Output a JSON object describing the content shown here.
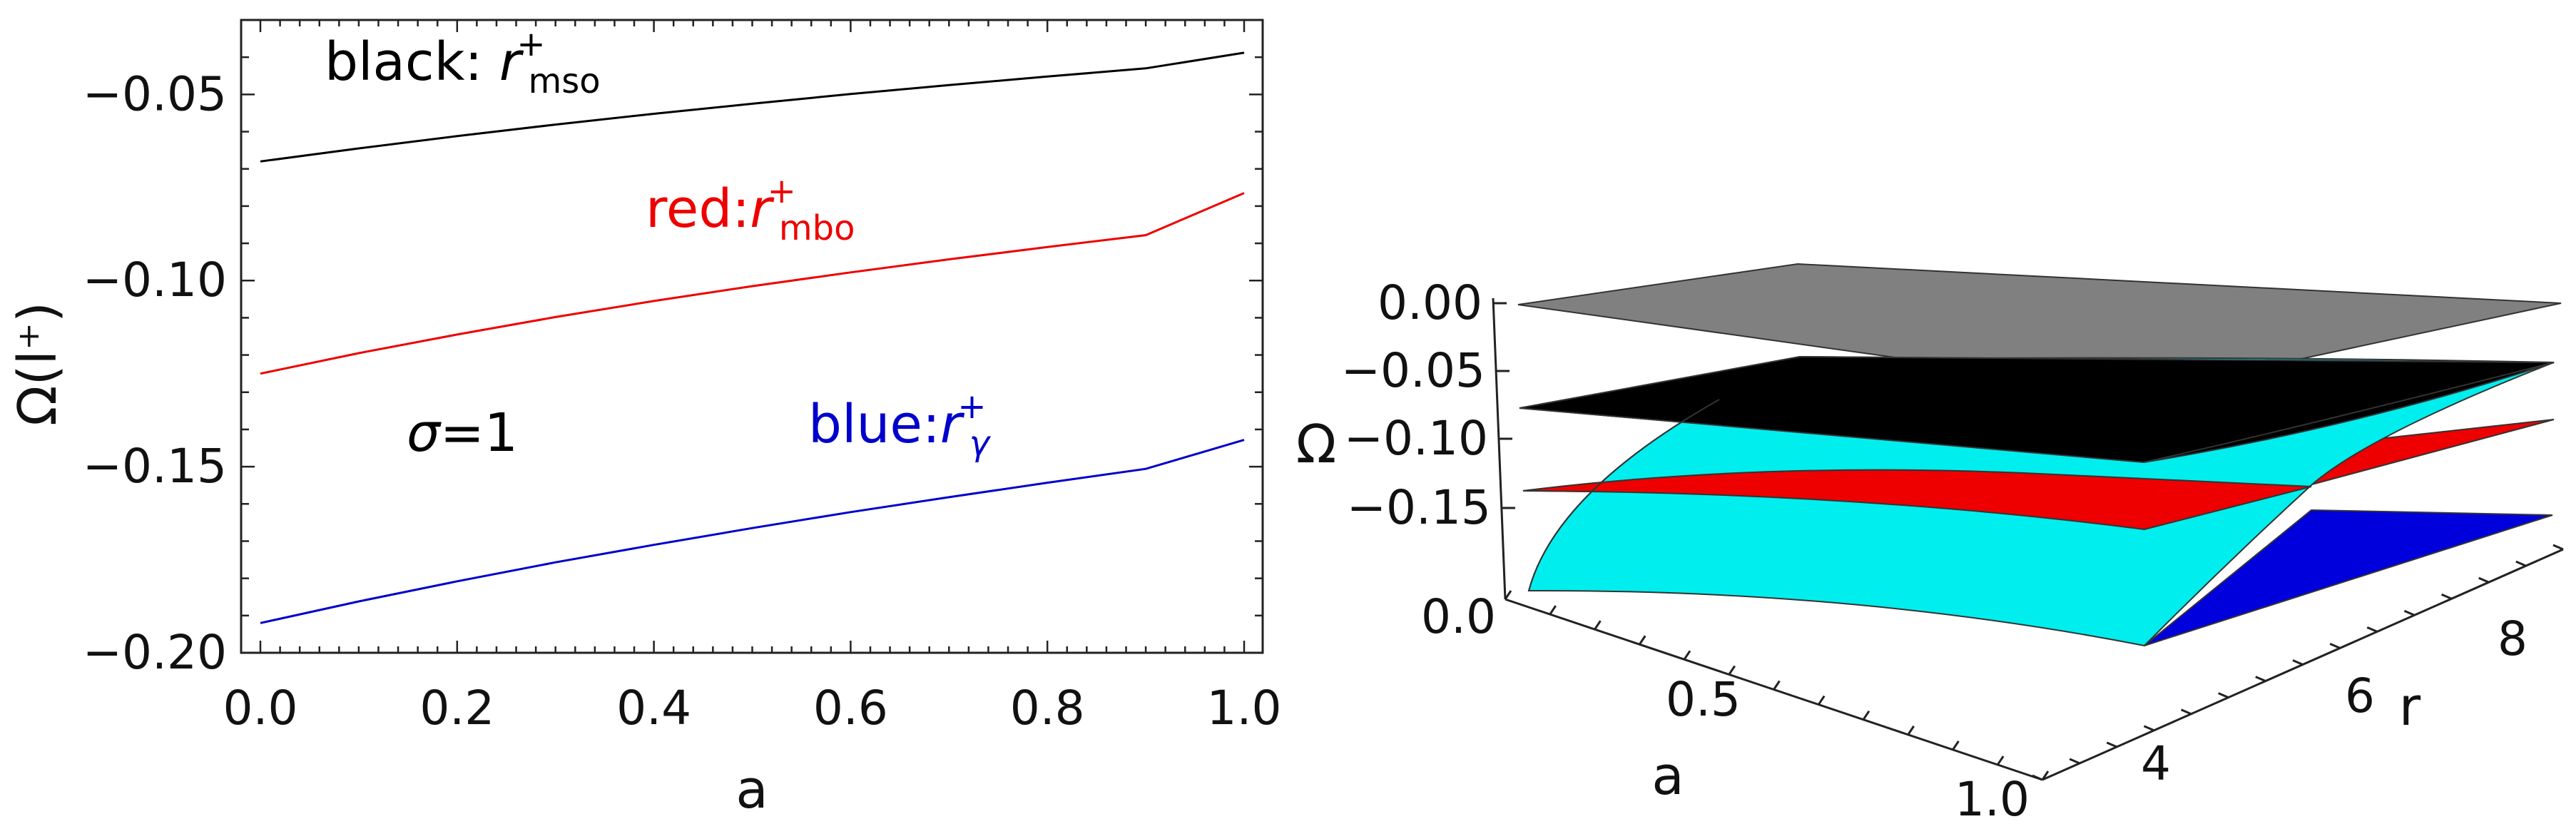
{
  "chart_data": [
    {
      "type": "line",
      "xlabel": "a",
      "ylabel": "Ω(l⁺)",
      "xlim": [
        0.0,
        1.0
      ],
      "ylim": [
        -0.2,
        -0.03
      ],
      "x_ticks": [
        "0.0",
        "0.2",
        "0.4",
        "0.6",
        "0.8",
        "1.0"
      ],
      "y_ticks": [
        "−0.05",
        "−0.10",
        "−0.15",
        "−0.20"
      ],
      "grid": false,
      "x": [
        0.0,
        0.1,
        0.2,
        0.3,
        0.4,
        0.5,
        0.6,
        0.7,
        0.8,
        0.9,
        1.0
      ],
      "series": [
        {
          "color": "#000000",
          "values": [
            -0.068,
            -0.0645,
            -0.0612,
            -0.0581,
            -0.0552,
            -0.0525,
            -0.0499,
            -0.0475,
            -0.0452,
            -0.043,
            -0.0388
          ]
        },
        {
          "color": "#ee0000",
          "values": [
            -0.125,
            -0.1195,
            -0.1145,
            -0.1098,
            -0.1055,
            -0.1015,
            -0.0978,
            -0.0943,
            -0.091,
            -0.0878,
            -0.0765
          ]
        },
        {
          "color": "#0000cc",
          "values": [
            -0.192,
            -0.1862,
            -0.1808,
            -0.1757,
            -0.171,
            -0.1665,
            -0.1622,
            -0.1582,
            -0.1543,
            -0.1506,
            -0.1428
          ]
        }
      ],
      "annotations": {
        "black": {
          "prefix": "black: ",
          "sym": "r",
          "sup": "+",
          "sub": "mso",
          "color": "#000000"
        },
        "red": {
          "prefix": "red:",
          "sym": "r",
          "sup": "+",
          "sub": "mbo",
          "color": "#ee0000"
        },
        "blue": {
          "prefix": "blue:",
          "sym": "r",
          "sup": "+",
          "sub": "γ",
          "color": "#0000cc"
        },
        "sigma": {
          "sym": "σ",
          "rest": "=1"
        }
      }
    },
    {
      "type": "surface3d",
      "zlabel": "Ω",
      "xlabel": "a",
      "ylabel": "r",
      "z_ticks": [
        "0.00",
        "−0.05",
        "−0.10",
        "−0.15"
      ],
      "a_ticks": [
        "0.0",
        "0.5",
        "1.0"
      ],
      "r_ticks": [
        "4",
        "6",
        "8"
      ],
      "surfaces": [
        {
          "color": "#808080"
        },
        {
          "color": "#000000"
        },
        {
          "color": "#ee0000"
        },
        {
          "color": "#0000dd"
        },
        {
          "color": "#00eeee"
        }
      ]
    }
  ]
}
